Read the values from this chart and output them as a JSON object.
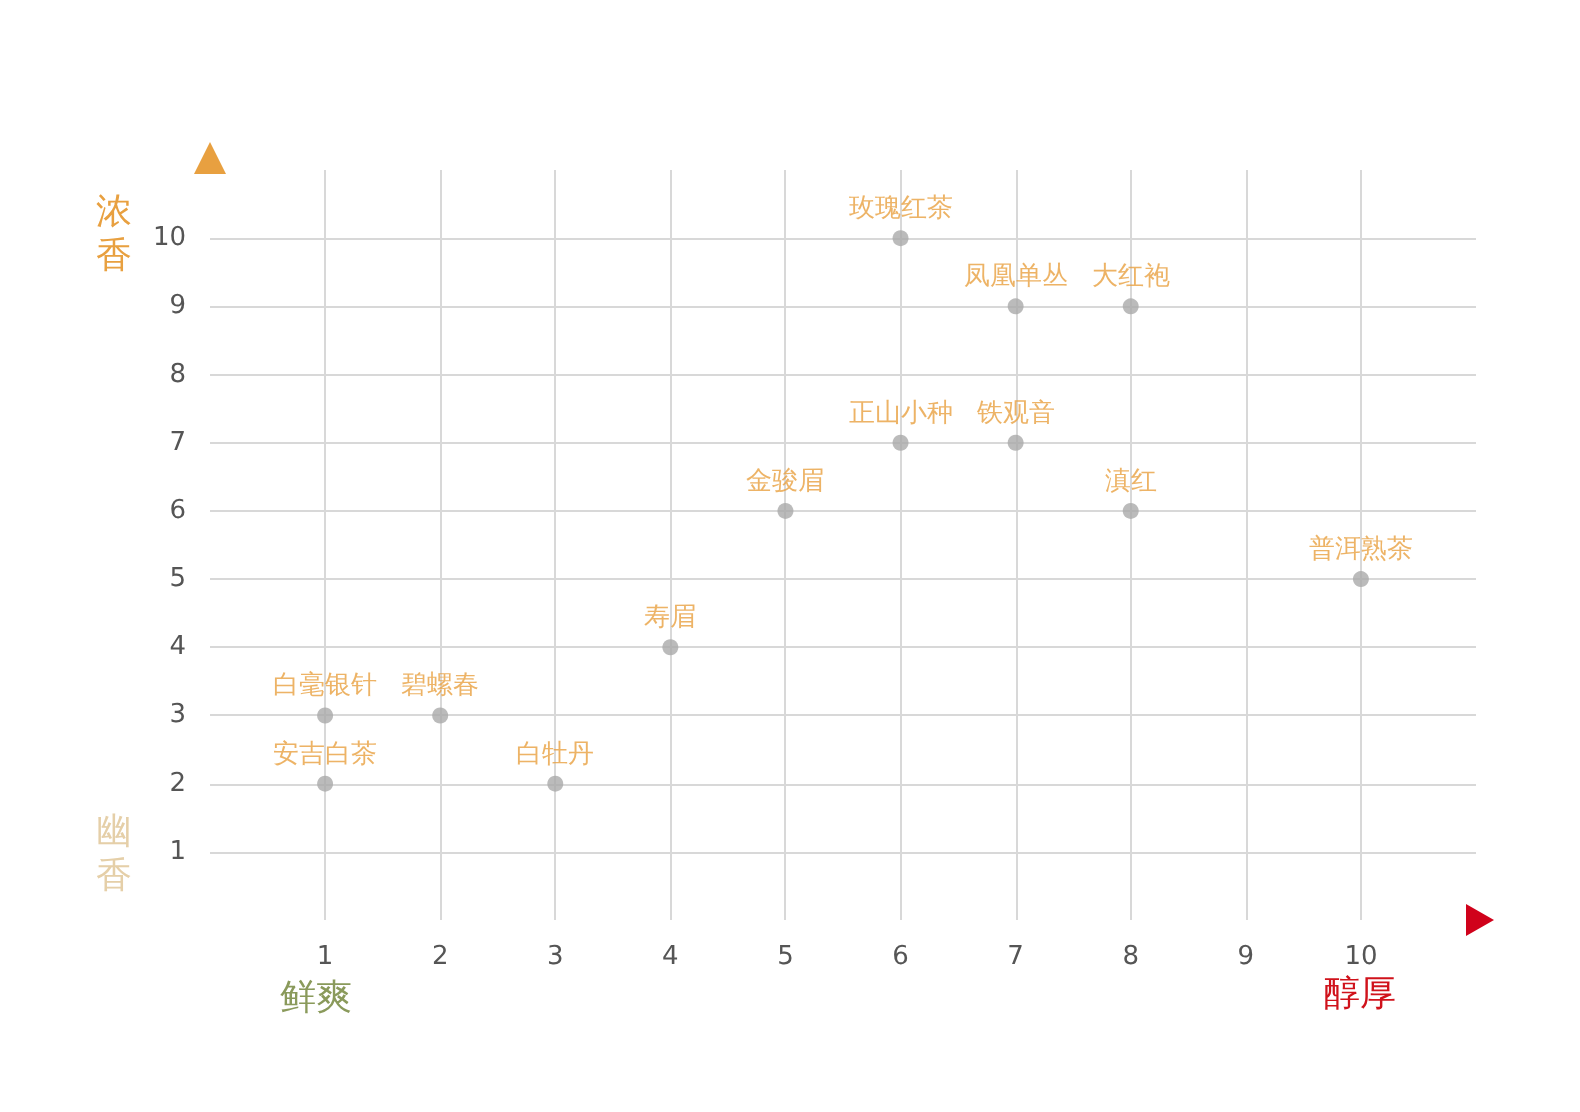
{
  "chart_data": {
    "type": "scatter",
    "xlabel": "醇厚",
    "ylabel": "浓香",
    "annotations": [
      "鲜爽",
      "幽香"
    ],
    "xlim": [
      0,
      11
    ],
    "ylim": [
      0,
      11
    ],
    "xticks": [
      1,
      2,
      3,
      4,
      5,
      6,
      7,
      8,
      9,
      10
    ],
    "yticks": [
      1,
      2,
      3,
      4,
      5,
      6,
      7,
      8,
      9,
      10
    ],
    "grid": true,
    "marker": "circle",
    "series": [
      {
        "name": "安吉白茶",
        "color": "#aaaaaa",
        "x": [
          1
        ],
        "values": [
          2
        ]
      },
      {
        "name": "白毫银针",
        "color": "#aaaaaa",
        "x": [
          1
        ],
        "values": [
          3
        ]
      },
      {
        "name": "碧螺春",
        "color": "#aaaaaa",
        "x": [
          2
        ],
        "values": [
          3
        ]
      },
      {
        "name": "白牡丹",
        "color": "#aaaaaa",
        "x": [
          3
        ],
        "values": [
          2
        ]
      },
      {
        "name": "寿眉",
        "color": "#aaaaaa",
        "x": [
          4
        ],
        "values": [
          4
        ]
      },
      {
        "name": "金骏眉",
        "color": "#aaaaaa",
        "x": [
          5
        ],
        "values": [
          6
        ]
      },
      {
        "name": "正山小种",
        "color": "#aaaaaa",
        "x": [
          6
        ],
        "values": [
          7
        ]
      },
      {
        "name": "玫瑰红茶",
        "color": "#aaaaaa",
        "x": [
          6
        ],
        "values": [
          10
        ]
      },
      {
        "name": "凤凰单丛",
        "color": "#aaaaaa",
        "x": [
          7
        ],
        "values": [
          9
        ]
      },
      {
        "name": "铁观音",
        "color": "#aaaaaa",
        "x": [
          7
        ],
        "values": [
          7
        ]
      },
      {
        "name": "大红袍",
        "color": "#aaaaaa",
        "x": [
          8
        ],
        "values": [
          9
        ]
      },
      {
        "name": "滇红",
        "color": "#aaaaaa",
        "x": [
          8
        ],
        "values": [
          6
        ]
      },
      {
        "name": "普洱熟茶",
        "color": "#aaaaaa",
        "x": [
          10
        ],
        "values": [
          5
        ]
      }
    ]
  }
}
